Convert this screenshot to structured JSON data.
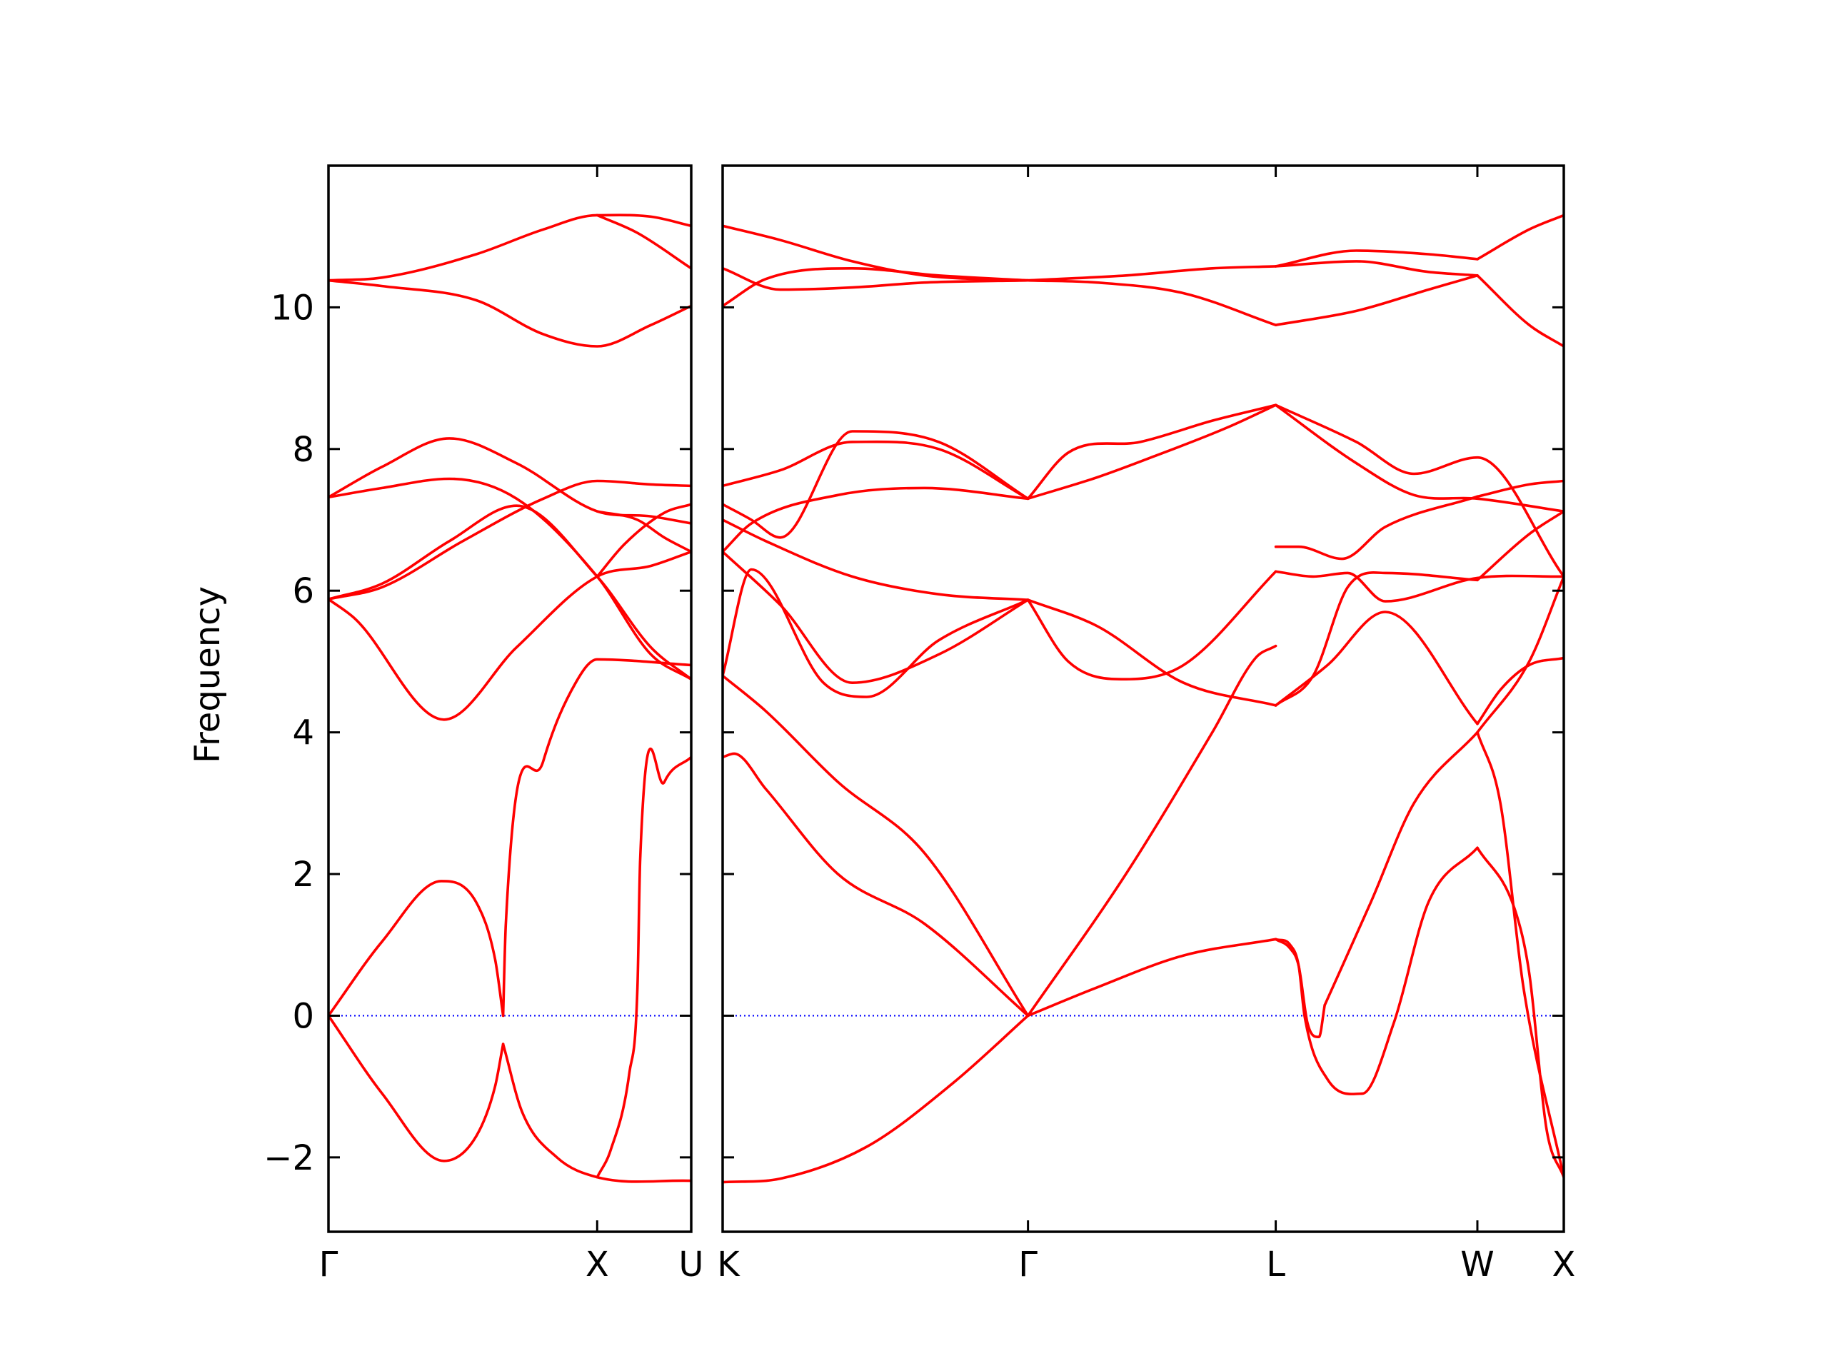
{
  "chart_data": {
    "type": "line",
    "title": "",
    "ylabel": "Frequency",
    "ylim": [
      -3.05,
      12.0
    ],
    "yticks": [
      -2,
      0,
      2,
      4,
      6,
      8,
      10
    ],
    "ytick_labels": [
      "−2",
      "0",
      "2",
      "4",
      "6",
      "8",
      "10"
    ],
    "band_color": "#ff0000",
    "zero_line_color": "#0000ff",
    "grid": false,
    "legend": "none",
    "panels": [
      {
        "x_range": [
          0,
          1.35
        ],
        "x_ticks": [
          {
            "x": 0,
            "label": "Γ"
          },
          {
            "x": 1.0,
            "label": "X"
          },
          {
            "x": 1.35,
            "label": "U"
          }
        ],
        "bands": [
          {
            "x": [
              0,
              0.2,
              0.42,
              0.55,
              0.62,
              0.65
            ],
            "y": [
              0,
              1.05,
              1.9,
              1.6,
              0.8,
              0
            ]
          },
          {
            "x": [
              0.65,
              0.66,
              0.8,
              0.92,
              1.0,
              1.35
            ],
            "y": [
              0,
              1.3,
              3.6,
              4.7,
              5.03,
              4.95
            ]
          },
          {
            "x": [
              0,
              0.2,
              0.43,
              0.55,
              0.62,
              0.65
            ],
            "y": [
              0,
              -1.1,
              -2.05,
              -1.7,
              -1.0,
              -0.4
            ]
          },
          {
            "x": [
              0.65,
              0.72,
              0.85,
              1.0,
              1.35
            ],
            "y": [
              -0.4,
              -1.35,
              -2.0,
              -2.28,
              -2.33
            ]
          },
          {
            "x": [
              1.0,
              1.05,
              1.12,
              1.15,
              1.16,
              1.25,
              1.35
            ],
            "y": [
              -2.28,
              -1.9,
              -0.8,
              0.4,
              2.2,
              3.3,
              3.65
            ]
          },
          {
            "x": [
              0,
              0.1,
              0.43,
              0.7,
              1.0,
              1.2,
              1.35
            ],
            "y": [
              5.88,
              5.6,
              4.18,
              5.2,
              6.2,
              6.35,
              6.55
            ]
          },
          {
            "x": [
              0,
              0.2,
              0.5,
              0.8,
              1.0,
              1.2,
              1.35
            ],
            "y": [
              5.88,
              6.05,
              6.7,
              7.3,
              7.55,
              7.5,
              7.48
            ]
          },
          {
            "x": [
              0,
              0.2,
              0.45,
              0.7,
              1.0,
              1.2,
              1.35
            ],
            "y": [
              5.88,
              6.1,
              6.7,
              7.2,
              6.2,
              5.2,
              4.75
            ]
          },
          {
            "x": [
              0,
              0.2,
              0.45,
              0.7,
              1.0,
              1.2,
              1.35
            ],
            "y": [
              7.32,
              7.75,
              8.15,
              7.8,
              7.12,
              7.05,
              6.95
            ]
          },
          {
            "x": [
              0,
              0.2,
              0.45,
              0.7,
              1.0,
              1.2,
              1.35
            ],
            "y": [
              7.32,
              7.45,
              7.58,
              7.3,
              6.2,
              5.1,
              4.75
            ]
          },
          {
            "x": [
              1.0,
              1.1,
              1.25,
              1.35
            ],
            "y": [
              6.2,
              6.65,
              7.1,
              7.22
            ]
          },
          {
            "x": [
              1.0,
              1.15,
              1.25,
              1.35
            ],
            "y": [
              7.12,
              7.0,
              6.75,
              6.55
            ]
          },
          {
            "x": [
              0,
              0.2,
              0.55,
              0.8,
              1.0,
              1.2,
              1.35
            ],
            "y": [
              10.38,
              10.42,
              10.75,
              11.1,
              11.3,
              11.28,
              11.15
            ]
          },
          {
            "x": [
              0,
              0.2,
              0.55,
              0.8,
              1.0,
              1.2,
              1.35
            ],
            "y": [
              10.38,
              10.3,
              10.1,
              9.62,
              9.45,
              9.75,
              10.02
            ]
          },
          {
            "x": [
              1.0,
              1.15,
              1.35
            ],
            "y": [
              11.3,
              11.05,
              10.55
            ]
          }
        ]
      },
      {
        "x_range": [
          0,
          2.92
        ],
        "x_ticks": [
          {
            "x": 0,
            "label": "K"
          },
          {
            "x": 1.06,
            "label": "Γ"
          },
          {
            "x": 1.92,
            "label": "L"
          },
          {
            "x": 2.62,
            "label": "W"
          },
          {
            "x": 2.92,
            "label": "X"
          }
        ],
        "bands": [
          {
            "x": [
              0,
              0.2,
              0.5,
              0.8,
              1.06
            ],
            "y": [
              -2.35,
              -2.3,
              -1.85,
              -0.95,
              0
            ]
          },
          {
            "x": [
              0,
              0.04,
              0.15,
              0.4,
              0.7,
              1.06
            ],
            "y": [
              3.65,
              3.7,
              3.2,
              2.0,
              1.3,
              0
            ]
          },
          {
            "x": [
              0,
              0.15,
              0.4,
              0.7,
              1.06
            ],
            "y": [
              4.8,
              4.3,
              3.3,
              2.3,
              0
            ]
          },
          {
            "x": [
              1.06,
              1.3,
              1.6,
              1.92
            ],
            "y": [
              0,
              0.4,
              0.85,
              1.08
            ]
          },
          {
            "x": [
              1.06,
              1.4,
              1.7,
              1.85,
              1.92
            ],
            "y": [
              0,
              2.0,
              4.0,
              5.05,
              5.22
            ]
          },
          {
            "x": [
              1.92,
              1.97,
              2.0,
              2.02,
              2.1,
              2.22,
              2.33,
              2.45,
              2.62
            ],
            "y": [
              1.08,
              1.0,
              0.7,
              0,
              -0.9,
              -1.1,
              -0.1,
              1.6,
              2.37
            ]
          },
          {
            "x": [
              1.92,
              1.97,
              2.0,
              2.03,
              2.07,
              2.09
            ],
            "y": [
              1.08,
              0.95,
              0.7,
              -0.1,
              -0.3,
              0.15
            ]
          },
          {
            "x": [
              2.09,
              2.25,
              2.4,
              2.62
            ],
            "y": [
              0.15,
              1.6,
              3.0,
              4.0
            ]
          },
          {
            "x": [
              2.62,
              2.8,
              2.92
            ],
            "y": [
              4.0,
              5.0,
              6.2
            ]
          },
          {
            "x": [
              2.62,
              2.75,
              2.8,
              2.86,
              2.92
            ],
            "y": [
              2.37,
              1.5,
              0.6,
              -1.6,
              -2.28
            ]
          },
          {
            "x": [
              2.62,
              2.7,
              2.78,
              2.92
            ],
            "y": [
              4.0,
              3.0,
              0.4,
              -2.28
            ]
          },
          {
            "x": [
              2.62,
              2.7,
              2.8,
              2.92
            ],
            "y": [
              4.12,
              4.6,
              4.95,
              5.05
            ]
          },
          {
            "x": [
              0,
              0.1,
              0.35,
              0.5,
              0.75,
              1.06
            ],
            "y": [
              4.8,
              6.3,
              4.7,
              4.5,
              5.3,
              5.87
            ]
          },
          {
            "x": [
              0,
              0.2,
              0.45,
              0.75,
              1.06
            ],
            "y": [
              6.55,
              5.8,
              4.7,
              5.1,
              5.87
            ]
          },
          {
            "x": [
              1.06,
              1.2,
              1.4,
              1.6,
              1.92
            ],
            "y": [
              5.87,
              5.0,
              4.75,
              4.95,
              6.27
            ]
          },
          {
            "x": [
              1.06,
              1.3,
              1.6,
              1.92
            ],
            "y": [
              5.87,
              5.5,
              4.7,
              4.38
            ]
          },
          {
            "x": [
              1.92,
              2.1,
              2.3,
              2.62
            ],
            "y": [
              4.38,
              4.95,
              5.7,
              4.12
            ]
          },
          {
            "x": [
              1.92,
              2.05,
              2.17,
              2.3,
              2.62,
              2.92
            ],
            "y": [
              6.27,
              6.2,
              6.25,
              5.85,
              6.18,
              6.2
            ]
          },
          {
            "x": [
              1.92,
              2.05,
              2.17,
              2.3,
              2.62
            ],
            "y": [
              4.38,
              4.8,
              6.05,
              6.25,
              6.15
            ]
          },
          {
            "x": [
              2.62,
              2.8,
              2.92
            ],
            "y": [
              6.15,
              6.8,
              7.12
            ]
          },
          {
            "x": [
              0,
              0.1,
              0.4,
              0.7,
              1.06
            ],
            "y": [
              6.55,
              6.95,
              7.35,
              7.45,
              7.3
            ]
          },
          {
            "x": [
              0,
              0.15,
              0.45,
              0.75,
              1.06
            ],
            "y": [
              7.0,
              6.7,
              6.2,
              5.95,
              5.87
            ]
          },
          {
            "x": [
              0,
              0.1,
              0.2,
              0.45,
              0.75,
              1.06
            ],
            "y": [
              7.22,
              7.0,
              6.75,
              8.25,
              8.1,
              7.3
            ]
          },
          {
            "x": [
              0,
              0.2,
              0.45,
              0.75,
              1.06
            ],
            "y": [
              7.48,
              7.7,
              8.1,
              8.0,
              7.3
            ]
          },
          {
            "x": [
              1.06,
              1.2,
              1.45,
              1.7,
              1.92
            ],
            "y": [
              7.3,
              7.95,
              8.1,
              8.4,
              8.62
            ]
          },
          {
            "x": [
              1.06,
              1.3,
              1.5,
              1.75,
              1.92
            ],
            "y": [
              7.3,
              7.6,
              7.9,
              8.3,
              8.62
            ]
          },
          {
            "x": [
              1.92,
              2.2,
              2.4,
              2.62,
              2.92
            ],
            "y": [
              8.62,
              8.1,
              7.65,
              7.88,
              6.2
            ]
          },
          {
            "x": [
              1.92,
              2.2,
              2.4,
              2.62,
              2.92
            ],
            "y": [
              8.62,
              7.8,
              7.35,
              7.3,
              7.12
            ]
          },
          {
            "x": [
              1.92,
              2.0,
              2.15,
              2.3,
              2.62
            ],
            "y": [
              6.62,
              6.62,
              6.45,
              6.9,
              7.33
            ]
          },
          {
            "x": [
              2.62,
              2.8,
              2.92
            ],
            "y": [
              7.33,
              7.5,
              7.55
            ]
          },
          {
            "x": [
              0,
              0.2,
              0.45,
              0.7,
              1.06
            ],
            "y": [
              11.15,
              10.95,
              10.65,
              10.45,
              10.38
            ]
          },
          {
            "x": [
              0,
              0.2,
              0.45,
              0.7,
              1.06
            ],
            "y": [
              10.55,
              10.25,
              10.28,
              10.35,
              10.38
            ]
          },
          {
            "x": [
              0,
              0.15,
              0.45,
              0.75,
              1.06
            ],
            "y": [
              10.02,
              10.4,
              10.55,
              10.45,
              10.38
            ]
          },
          {
            "x": [
              1.06,
              1.3,
              1.6,
              1.92
            ],
            "y": [
              10.38,
              10.35,
              10.2,
              9.75
            ]
          },
          {
            "x": [
              1.06,
              1.4,
              1.7,
              1.92
            ],
            "y": [
              10.38,
              10.45,
              10.55,
              10.58
            ]
          },
          {
            "x": [
              1.92,
              2.2,
              2.45,
              2.62
            ],
            "y": [
              9.75,
              9.95,
              10.25,
              10.45
            ]
          },
          {
            "x": [
              1.92,
              2.2,
              2.45,
              2.62
            ],
            "y": [
              10.58,
              10.8,
              10.75,
              10.68
            ]
          },
          {
            "x": [
              1.92,
              2.2,
              2.45,
              2.62
            ],
            "y": [
              10.58,
              10.65,
              10.5,
              10.45
            ]
          },
          {
            "x": [
              2.62,
              2.8,
              2.92
            ],
            "y": [
              10.68,
              11.1,
              11.3
            ]
          },
          {
            "x": [
              2.62,
              2.8,
              2.92
            ],
            "y": [
              10.45,
              9.75,
              9.45
            ]
          }
        ]
      }
    ]
  }
}
